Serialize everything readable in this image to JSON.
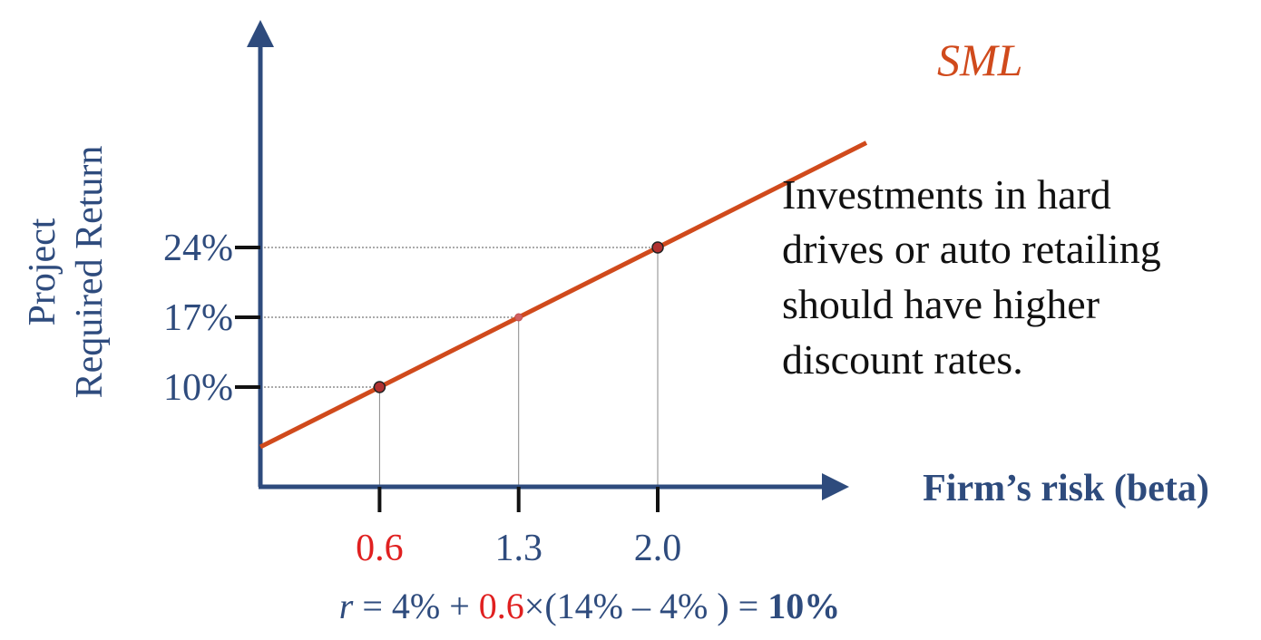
{
  "chart_data": {
    "type": "line",
    "title": "",
    "xlabel": "Firm’s risk (beta)",
    "ylabel_lines": [
      "Project",
      "Required Return"
    ],
    "series": [
      {
        "name": "SML",
        "x": [
          0,
          3.05
        ],
        "y": [
          4,
          34.5
        ]
      }
    ],
    "highlighted_points": [
      {
        "x": 0.6,
        "y": 10,
        "x_label": "0.6",
        "y_label": "10%",
        "x_label_color": "#e02020"
      },
      {
        "x": 1.3,
        "y": 17,
        "x_label": "1.3",
        "y_label": "17%",
        "x_label_color": "#2e4b7d"
      },
      {
        "x": 2.0,
        "y": 24,
        "x_label": "2.0",
        "y_label": "24%",
        "x_label_color": "#2e4b7d"
      }
    ],
    "xlim": [
      0,
      3.05
    ],
    "ylim": [
      0,
      38
    ],
    "grid": false,
    "line_label": "SML",
    "colors": {
      "axis": "#2e4b7d",
      "line": "#d04a1c",
      "highlight": "#e02020"
    }
  },
  "annotation": {
    "lines": [
      "Investments in hard",
      "drives or auto retailing",
      "should have higher",
      "discount rates."
    ]
  },
  "formula": {
    "r": "r",
    "part1": " = 4% + ",
    "beta": "0.6",
    "part2": "×(14% – 4% ) = ",
    "result": "10%"
  }
}
